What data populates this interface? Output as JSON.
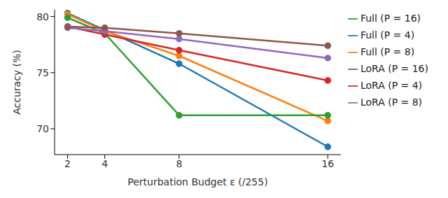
{
  "chart_data": {
    "type": "line",
    "x_label": "Perturbation Budget ε (/255)",
    "y_label": "Accuracy (%)",
    "x": [
      2,
      4,
      8,
      16
    ],
    "xlim": [
      1.3,
      16.7
    ],
    "xticks": [
      2,
      4,
      8,
      16
    ],
    "ylim": [
      67.7,
      80.6
    ],
    "yticks": [
      70,
      75,
      80
    ],
    "grid": false,
    "legend": "upper right outside",
    "marker": "circle",
    "series": [
      {
        "name": "Full (P = 4)",
        "color": "#1f77b4",
        "values": [
          80.3,
          78.8,
          75.8,
          68.4
        ]
      },
      {
        "name": "Full (P = 8)",
        "color": "#ff7f0e",
        "values": [
          80.2,
          78.7,
          76.5,
          70.7
        ]
      },
      {
        "name": "Full (P = 16)",
        "color": "#2ca02c",
        "values": [
          79.9,
          78.5,
          71.2,
          71.2
        ]
      },
      {
        "name": "LoRA (P = 4)",
        "color": "#d62728",
        "values": [
          79.1,
          78.4,
          77.0,
          74.3
        ]
      },
      {
        "name": "LoRA (P = 8)",
        "color": "#9467bd",
        "values": [
          79.0,
          78.7,
          78.0,
          76.3
        ]
      },
      {
        "name": "LoRA (P = 16)",
        "color": "#8c564b",
        "values": [
          79.1,
          79.0,
          78.5,
          77.4
        ]
      }
    ]
  }
}
